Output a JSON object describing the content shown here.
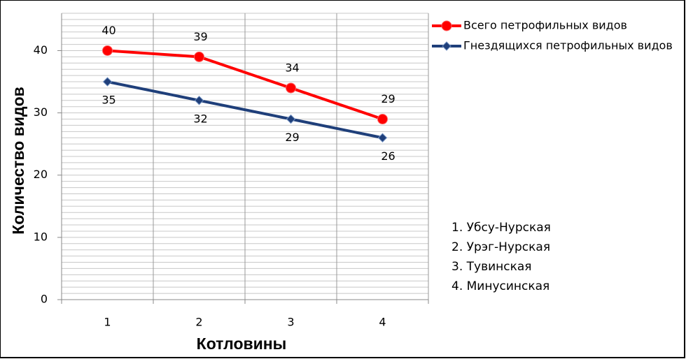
{
  "chart_data": {
    "type": "line",
    "x_label": "Котловины",
    "y_label": "Количество видов",
    "categories": [
      "1",
      "2",
      "3",
      "4"
    ],
    "series": [
      {
        "name": "Всего петрофильных видов",
        "color": "#ff0000",
        "marker": "circle",
        "label_side": "above",
        "values": [
          40,
          39,
          34,
          29
        ]
      },
      {
        "name": "Гнездящихся петрофильных видов",
        "color": "#1f3f7a",
        "marker": "diamond",
        "label_side": "below",
        "values": [
          35,
          32,
          29,
          26
        ]
      }
    ],
    "ylim": [
      0,
      46
    ],
    "yticks": [
      0,
      10,
      20,
      30,
      40
    ],
    "grid": true,
    "minor_grid_step": 1,
    "legend": "top-right",
    "notes": [
      "1. Убсу-Нурская",
      "2. Урэг-Нурская",
      "3. Тувинская",
      "4. Минусинская"
    ]
  }
}
